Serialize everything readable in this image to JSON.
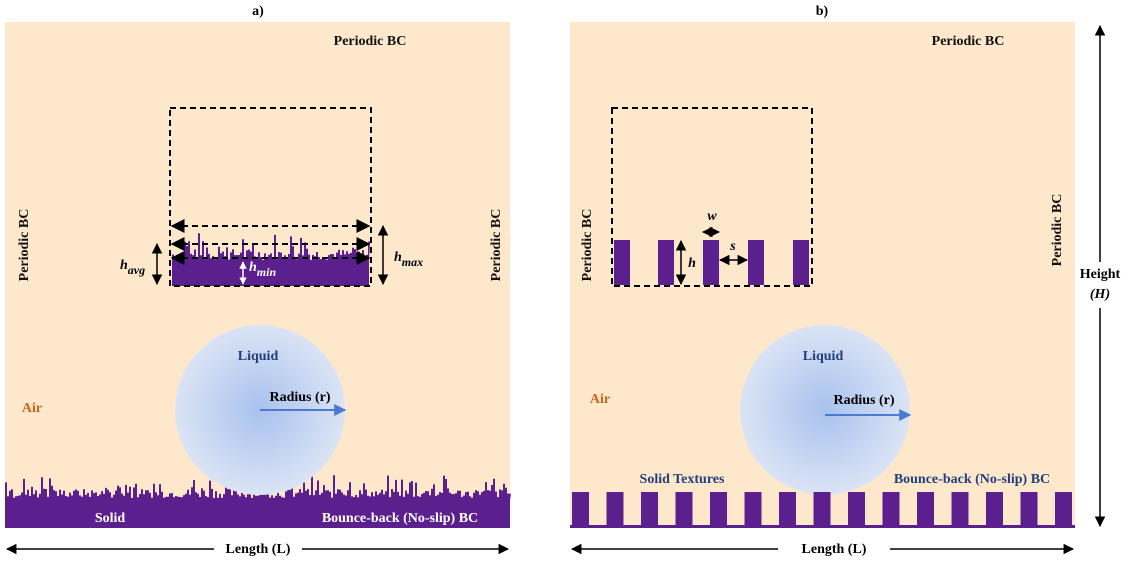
{
  "panel_a": {
    "label": "a)",
    "top_bc": "Periodic BC",
    "left_bc": "Periodic BC",
    "right_bc": "Periodic BC",
    "h_avg": {
      "symbol": "h",
      "subscript": "avg"
    },
    "h_max": {
      "symbol": "h",
      "subscript": "max"
    },
    "h_min": {
      "symbol": "h",
      "subscript": "min"
    },
    "liquid": "Liquid",
    "radius": "Radius (r)",
    "air": "Air",
    "solid": "Solid",
    "bottom_bc": "Bounce-back (No-slip) BC",
    "length": "Length (L)"
  },
  "panel_b": {
    "label": "b)",
    "top_bc": "Periodic BC",
    "left_bc": "Periodic BC",
    "right_bc": "Periodic BC",
    "w": "w",
    "s": "s",
    "h": "h",
    "liquid": "Liquid",
    "radius": "Radius (r)",
    "air": "Air",
    "solid": "Solid Textures",
    "bottom_bc": "Bounce-back (No-slip) BC",
    "length": "Length (L)",
    "height": "Height",
    "height_symbol": "(H)"
  }
}
